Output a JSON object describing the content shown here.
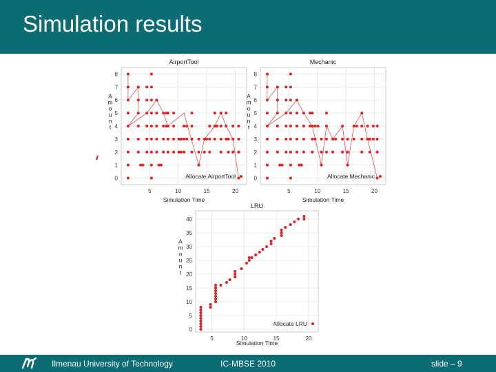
{
  "slide": {
    "title": "Simulation results",
    "footer_left": "Ilmenau University of Technology",
    "footer_center": "IC-MBSE 2010",
    "footer_right": "slide – 9",
    "accent_color": "#0b6c73",
    "marker_color": "#e02020"
  },
  "chart_data": [
    {
      "type": "line",
      "title": "AirportTool",
      "xlabel": "Simulation Time",
      "ylabel": "Amount",
      "xlim": [
        0,
        22
      ],
      "ylim": [
        -0.5,
        8.5
      ],
      "xticks": [
        5,
        10,
        15,
        20
      ],
      "yticks": [
        0,
        1,
        2,
        3,
        4,
        5,
        6,
        7,
        8
      ],
      "grid": true,
      "legend_position": "bottom-right",
      "series": [
        {
          "name": "Allocate AirportTool",
          "points": [
            [
              1.2,
              8
            ],
            [
              1.2,
              7
            ],
            [
              1.2,
              6
            ],
            [
              1.2,
              5
            ],
            [
              1.2,
              4
            ],
            [
              1.2,
              3
            ],
            [
              1.2,
              2
            ],
            [
              1.2,
              1
            ],
            [
              1.2,
              0
            ],
            [
              3,
              7
            ],
            [
              3,
              6
            ],
            [
              3,
              5
            ],
            [
              3,
              4
            ],
            [
              3,
              3
            ],
            [
              3,
              2
            ],
            [
              3.4,
              1
            ],
            [
              3.8,
              1
            ],
            [
              4.5,
              7
            ],
            [
              4.5,
              6
            ],
            [
              4.5,
              5
            ],
            [
              4.5,
              4
            ],
            [
              4.5,
              3
            ],
            [
              4.5,
              2
            ],
            [
              5.3,
              8
            ],
            [
              5.3,
              7
            ],
            [
              5.3,
              6
            ],
            [
              5.3,
              5
            ],
            [
              5.3,
              4
            ],
            [
              5.3,
              3
            ],
            [
              5.3,
              2
            ],
            [
              5.3,
              1
            ],
            [
              5.3,
              0
            ],
            [
              6.2,
              6
            ],
            [
              6.2,
              5
            ],
            [
              6.2,
              4
            ],
            [
              6.2,
              3
            ],
            [
              6.2,
              2
            ],
            [
              6.6,
              1
            ],
            [
              7,
              1
            ],
            [
              7.4,
              5
            ],
            [
              7.4,
              4
            ],
            [
              7.4,
              3
            ],
            [
              7.4,
              2
            ],
            [
              7.9,
              5
            ],
            [
              7.9,
              4
            ],
            [
              8.2,
              5
            ],
            [
              8.2,
              4
            ],
            [
              8.2,
              3
            ],
            [
              8.2,
              2
            ],
            [
              9.2,
              5
            ],
            [
              9.2,
              4
            ],
            [
              9.2,
              3
            ],
            [
              9.2,
              2
            ],
            [
              10.1,
              3
            ],
            [
              10.1,
              2
            ],
            [
              10.5,
              3
            ],
            [
              10.5,
              2
            ],
            [
              11,
              4
            ],
            [
              11,
              3
            ],
            [
              11,
              2
            ],
            [
              11.5,
              4
            ],
            [
              11.5,
              3
            ],
            [
              12.4,
              5
            ],
            [
              12.4,
              4
            ],
            [
              12.4,
              3
            ],
            [
              12.4,
              2
            ],
            [
              13.6,
              3
            ],
            [
              13.6,
              2
            ],
            [
              13.6,
              1
            ],
            [
              14.6,
              3
            ],
            [
              14.6,
              2
            ],
            [
              15,
              3
            ],
            [
              15.5,
              4
            ],
            [
              15.5,
              3
            ],
            [
              15.5,
              2
            ],
            [
              16.4,
              5
            ],
            [
              16.4,
              4
            ],
            [
              16.4,
              3
            ],
            [
              16.8,
              4
            ],
            [
              17.5,
              5
            ],
            [
              17.5,
              4
            ],
            [
              17.5,
              3
            ],
            [
              17.5,
              2
            ],
            [
              18.4,
              5
            ],
            [
              18.4,
              4
            ],
            [
              18.4,
              3
            ],
            [
              18.8,
              3
            ],
            [
              18.8,
              2
            ],
            [
              19.6,
              4
            ],
            [
              19.6,
              3
            ],
            [
              19.6,
              2
            ],
            [
              20.6,
              4
            ],
            [
              20.6,
              3
            ],
            [
              20.6,
              2
            ],
            [
              20.6,
              0
            ]
          ],
          "path": [
            [
              1.2,
              8
            ],
            [
              1.2,
              6
            ],
            [
              3,
              7
            ],
            [
              3,
              5
            ],
            [
              1.2,
              4
            ],
            [
              4.5,
              5
            ],
            [
              6.2,
              6
            ],
            [
              7.4,
              5
            ],
            [
              8.2,
              4
            ],
            [
              11,
              5
            ],
            [
              13.6,
              1
            ],
            [
              14.6,
              3
            ],
            [
              16.4,
              4
            ],
            [
              17.5,
              5
            ],
            [
              18.4,
              4
            ],
            [
              19.6,
              3
            ],
            [
              20.6,
              0
            ]
          ]
        }
      ]
    },
    {
      "type": "line",
      "title": "Mechanic",
      "xlabel": "Simulation Time",
      "ylabel": "Amount",
      "xlim": [
        0,
        22
      ],
      "ylim": [
        -0.5,
        8.5
      ],
      "xticks": [
        5,
        10,
        15,
        20
      ],
      "yticks": [
        0,
        1,
        2,
        3,
        4,
        5,
        6,
        7,
        8
      ],
      "grid": true,
      "legend_position": "bottom-right",
      "series": [
        {
          "name": "Allocate Mechanic",
          "points": [
            [
              1.2,
              8
            ],
            [
              1.2,
              7
            ],
            [
              1.2,
              6
            ],
            [
              1.2,
              5
            ],
            [
              1.2,
              4
            ],
            [
              1.2,
              3
            ],
            [
              1.2,
              2
            ],
            [
              1.2,
              1
            ],
            [
              1.2,
              0
            ],
            [
              3,
              7
            ],
            [
              3,
              6
            ],
            [
              3,
              5
            ],
            [
              3,
              4
            ],
            [
              3,
              3
            ],
            [
              3,
              2
            ],
            [
              3.4,
              1
            ],
            [
              3.8,
              1
            ],
            [
              4.5,
              7
            ],
            [
              4.5,
              6
            ],
            [
              4.5,
              5
            ],
            [
              4.5,
              4
            ],
            [
              4.5,
              3
            ],
            [
              4.5,
              2
            ],
            [
              5.3,
              8
            ],
            [
              5.3,
              7
            ],
            [
              5.3,
              6
            ],
            [
              5.3,
              5
            ],
            [
              5.3,
              4
            ],
            [
              5.3,
              3
            ],
            [
              5.3,
              2
            ],
            [
              5.3,
              1
            ],
            [
              5.3,
              0
            ],
            [
              6.4,
              6
            ],
            [
              6.4,
              5
            ],
            [
              6.4,
              4
            ],
            [
              6.4,
              3
            ],
            [
              6.4,
              2
            ],
            [
              6.8,
              1
            ],
            [
              7.2,
              1
            ],
            [
              7.6,
              5
            ],
            [
              7.6,
              4
            ],
            [
              7.6,
              3
            ],
            [
              7.6,
              2
            ],
            [
              8.7,
              5
            ],
            [
              8.7,
              4
            ],
            [
              9.1,
              5
            ],
            [
              9.1,
              4
            ],
            [
              9.1,
              3
            ],
            [
              9.1,
              2
            ],
            [
              9.6,
              4
            ],
            [
              9.6,
              3
            ],
            [
              10.1,
              4
            ],
            [
              10.7,
              3
            ],
            [
              10.7,
              2
            ],
            [
              10.7,
              1
            ],
            [
              11.6,
              5
            ],
            [
              11.6,
              4
            ],
            [
              11.6,
              3
            ],
            [
              11.6,
              2
            ],
            [
              12.7,
              3
            ],
            [
              12.7,
              2
            ],
            [
              13.2,
              3
            ],
            [
              14.4,
              4
            ],
            [
              14.4,
              3
            ],
            [
              14.4,
              2
            ],
            [
              15.3,
              3
            ],
            [
              15.3,
              2
            ],
            [
              15.3,
              1
            ],
            [
              16.4,
              4
            ],
            [
              16.4,
              3
            ],
            [
              16.9,
              4
            ],
            [
              17.8,
              5
            ],
            [
              17.8,
              4
            ],
            [
              17.8,
              3
            ],
            [
              17.8,
              2
            ],
            [
              18.8,
              4
            ],
            [
              18.8,
              3
            ],
            [
              19.2,
              3
            ],
            [
              19.2,
              2
            ],
            [
              19.8,
              4
            ],
            [
              19.8,
              3
            ],
            [
              20.5,
              4
            ],
            [
              20.5,
              3
            ],
            [
              20.5,
              2
            ],
            [
              20.5,
              0
            ]
          ],
          "path": [
            [
              1.2,
              8
            ],
            [
              1.2,
              6
            ],
            [
              3,
              7
            ],
            [
              3,
              5
            ],
            [
              1.2,
              4
            ],
            [
              4.5,
              5
            ],
            [
              6.4,
              6
            ],
            [
              7.6,
              5
            ],
            [
              9.1,
              4
            ],
            [
              10.7,
              1
            ],
            [
              11.6,
              4
            ],
            [
              12.7,
              3
            ],
            [
              14.4,
              4
            ],
            [
              15.3,
              1
            ],
            [
              16.4,
              4
            ],
            [
              17.8,
              5
            ],
            [
              18.8,
              3
            ],
            [
              20.5,
              0
            ]
          ]
        }
      ]
    },
    {
      "type": "scatter",
      "title": "LRU",
      "xlabel": "Simulation Time",
      "ylabel": "Amount",
      "xlim": [
        2.5,
        21.5
      ],
      "ylim": [
        -1,
        43
      ],
      "xticks": [
        5,
        10,
        15,
        20
      ],
      "yticks": [
        0,
        5,
        10,
        15,
        20,
        25,
        30,
        35,
        40
      ],
      "grid": true,
      "legend_position": "bottom-right",
      "series": [
        {
          "name": "Allocate LRU",
          "points": [
            [
              3.3,
              0
            ],
            [
              3.3,
              1
            ],
            [
              3.3,
              2
            ],
            [
              3.3,
              3
            ],
            [
              3.3,
              4
            ],
            [
              3.3,
              5
            ],
            [
              3.3,
              6
            ],
            [
              3.3,
              7
            ],
            [
              3.3,
              8
            ],
            [
              4.8,
              8
            ],
            [
              4.8,
              9
            ],
            [
              5.6,
              10
            ],
            [
              5.6,
              11
            ],
            [
              5.6,
              12
            ],
            [
              5.6,
              13
            ],
            [
              5.6,
              14
            ],
            [
              5.6,
              15
            ],
            [
              5.6,
              16
            ],
            [
              6.4,
              16
            ],
            [
              7.3,
              17
            ],
            [
              7.8,
              18
            ],
            [
              8.6,
              19
            ],
            [
              8.6,
              20
            ],
            [
              8.6,
              21
            ],
            [
              9.6,
              22
            ],
            [
              10.4,
              24
            ],
            [
              10.8,
              25
            ],
            [
              10.8,
              26
            ],
            [
              11.2,
              26
            ],
            [
              11.8,
              27
            ],
            [
              12.4,
              28
            ],
            [
              12.9,
              29
            ],
            [
              13.5,
              30
            ],
            [
              14.2,
              31
            ],
            [
              14.2,
              32
            ],
            [
              14.7,
              33
            ],
            [
              15.8,
              34
            ],
            [
              15.8,
              35
            ],
            [
              15.8,
              36
            ],
            [
              16.4,
              37
            ],
            [
              17.2,
              38
            ],
            [
              17.8,
              39
            ],
            [
              18.4,
              40
            ],
            [
              19.3,
              40
            ],
            [
              19.3,
              41
            ]
          ]
        }
      ]
    }
  ]
}
